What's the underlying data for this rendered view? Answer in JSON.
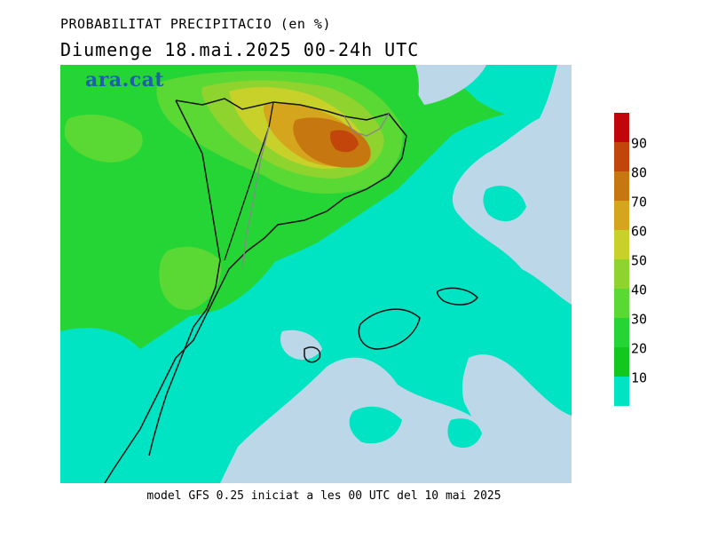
{
  "header": {
    "title": "PROBABILITAT PRECIPITACIO (en %)",
    "subtitle": "Diumenge  18.mai.2025 00-24h UTC"
  },
  "map": {
    "watermark": "ara.cat",
    "colors": {
      "sea": "#bcd8e8",
      "p10": "#00e4c4",
      "p20": "#12c81e",
      "p30": "#25d535",
      "p40": "#5ad834",
      "p50": "#8ed32e",
      "p60": "#c7d12a",
      "p70": "#d5a51d",
      "p80": "#c7770f",
      "p90": "#c2460c",
      "p100": "#c0050b"
    }
  },
  "legend": {
    "labels": [
      "90",
      "80",
      "70",
      "60",
      "50",
      "40",
      "30",
      "20",
      "10"
    ],
    "colors": [
      "#c0050b",
      "#c2460c",
      "#c7770f",
      "#d5a51d",
      "#c7d12a",
      "#8ed32e",
      "#5ad834",
      "#25d535",
      "#12c81e",
      "#00e4c4"
    ]
  },
  "footer": {
    "text": "model GFS 0.25 iniciat a les 00 UTC del 10 mai 2025"
  }
}
